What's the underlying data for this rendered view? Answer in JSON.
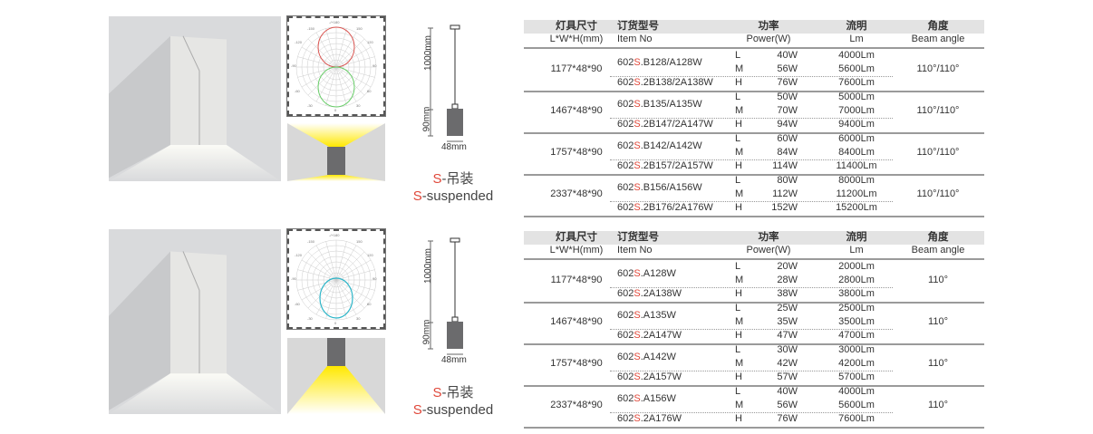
{
  "headers": {
    "size_cn": "灯具尺寸",
    "size_en": "L*W*H(mm)",
    "item_cn": "订货型号",
    "item_en": "Item No",
    "power_cn": "功率",
    "power_en": "Power(W)",
    "lm_cn": "流明",
    "lm_en": "Lm",
    "angle_cn": "角度",
    "angle_en": "Beam angle"
  },
  "polar_labels": [
    "-/+180",
    "-150",
    "150",
    "-120",
    "120",
    "-90",
    "90",
    "-60",
    "60",
    "-30",
    "30",
    "0"
  ],
  "drawing": {
    "cable": "1000mm",
    "height": "90mm",
    "width": "48mm"
  },
  "mount": {
    "code": "S",
    "cn": "-吊装",
    "en": "-suspended"
  },
  "colors": {
    "accent": "#e0483a",
    "beam": "#ffe800",
    "body": "#6b6b6d"
  },
  "sections": [
    {
      "beam": "up-down",
      "polar_color": "#d9534f",
      "table": [
        {
          "size": "1177*48*90",
          "items": [
            [
              "602",
              "S",
              ".B128/A128W"
            ],
            [
              "602",
              "S",
              ".2B138/2A138W"
            ]
          ],
          "levels": [
            [
              "L",
              "40W",
              "4000Lm"
            ],
            [
              "M",
              "56W",
              "5600Lm"
            ],
            [
              "H",
              "76W",
              "7600Lm"
            ]
          ],
          "angle": "110°/110°"
        },
        {
          "size": "1467*48*90",
          "items": [
            [
              "602",
              "S",
              ".B135/A135W"
            ],
            [
              "602",
              "S",
              ".2B147/2A147W"
            ]
          ],
          "levels": [
            [
              "L",
              "50W",
              "5000Lm"
            ],
            [
              "M",
              "70W",
              "7000Lm"
            ],
            [
              "H",
              "94W",
              "9400Lm"
            ]
          ],
          "angle": "110°/110°"
        },
        {
          "size": "1757*48*90",
          "items": [
            [
              "602",
              "S",
              ".B142/A142W"
            ],
            [
              "602",
              "S",
              ".2B157/2A157W"
            ]
          ],
          "levels": [
            [
              "L",
              "60W",
              "6000Lm"
            ],
            [
              "M",
              "84W",
              "8400Lm"
            ],
            [
              "H",
              "114W",
              "11400Lm"
            ]
          ],
          "angle": "110°/110°"
        },
        {
          "size": "2337*48*90",
          "items": [
            [
              "602",
              "S",
              ".B156/A156W"
            ],
            [
              "602",
              "S",
              ".2B176/2A176W"
            ]
          ],
          "levels": [
            [
              "L",
              "80W",
              "8000Lm"
            ],
            [
              "M",
              "112W",
              "11200Lm"
            ],
            [
              "H",
              "152W",
              "15200Lm"
            ]
          ],
          "angle": "110°/110°"
        }
      ]
    },
    {
      "beam": "down",
      "polar_color": "#2bb5c8",
      "table": [
        {
          "size": "1177*48*90",
          "items": [
            [
              "602",
              "S",
              ".A128W"
            ],
            [
              "602",
              "S",
              ".2A138W"
            ]
          ],
          "levels": [
            [
              "L",
              "20W",
              "2000Lm"
            ],
            [
              "M",
              "28W",
              "2800Lm"
            ],
            [
              "H",
              "38W",
              "3800Lm"
            ]
          ],
          "angle": "110°"
        },
        {
          "size": "1467*48*90",
          "items": [
            [
              "602",
              "S",
              ".A135W"
            ],
            [
              "602",
              "S",
              ".2A147W"
            ]
          ],
          "levels": [
            [
              "L",
              "25W",
              "2500Lm"
            ],
            [
              "M",
              "35W",
              "3500Lm"
            ],
            [
              "H",
              "47W",
              "4700Lm"
            ]
          ],
          "angle": "110°"
        },
        {
          "size": "1757*48*90",
          "items": [
            [
              "602",
              "S",
              ".A142W"
            ],
            [
              "602",
              "S",
              ".2A157W"
            ]
          ],
          "levels": [
            [
              "L",
              "30W",
              "3000Lm"
            ],
            [
              "M",
              "42W",
              "4200Lm"
            ],
            [
              "H",
              "57W",
              "5700Lm"
            ]
          ],
          "angle": "110°"
        },
        {
          "size": "2337*48*90",
          "items": [
            [
              "602",
              "S",
              ".A156W"
            ],
            [
              "602",
              "S",
              ".2A176W"
            ]
          ],
          "levels": [
            [
              "L",
              "40W",
              "4000Lm"
            ],
            [
              "M",
              "56W",
              "5600Lm"
            ],
            [
              "H",
              "76W",
              "7600Lm"
            ]
          ],
          "angle": "110°"
        }
      ]
    }
  ]
}
